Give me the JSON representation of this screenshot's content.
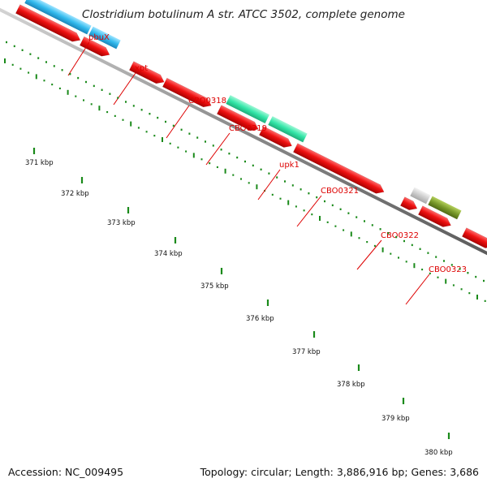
{
  "title": "Clostridium botulinum A str. ATCC 3502, complete genome",
  "accession": "Accession: NC_009495",
  "topology": "Topology: circular; Length: 3,886,916 bp; Genes: 3,686",
  "colors": {
    "backbone": "#9a9a9a",
    "tick": "#1a8a1a",
    "label": "#dd0000",
    "cds": "#ee1111",
    "blue_feature": "#33bbee",
    "teal_feature": "#33e6a8",
    "gray_feature": "#cccccc",
    "olive_feature": "#7a9a2a"
  },
  "gene_labels": [
    {
      "name": "pbuX"
    },
    {
      "name": "xpt"
    },
    {
      "name": "CBO0318"
    },
    {
      "name": "CBO0319"
    },
    {
      "name": "upk1"
    },
    {
      "name": "CBO0321"
    },
    {
      "name": "CBO0322"
    },
    {
      "name": "CBO0323"
    }
  ],
  "ruler": [
    {
      "label": "371 kbp"
    },
    {
      "label": "372 kbp"
    },
    {
      "label": "373 kbp"
    },
    {
      "label": "374 kbp"
    },
    {
      "label": "375 kbp"
    },
    {
      "label": "376 kbp"
    },
    {
      "label": "377 kbp"
    },
    {
      "label": "378 kbp"
    },
    {
      "label": "379 kbp"
    },
    {
      "label": "380 kbp"
    }
  ]
}
